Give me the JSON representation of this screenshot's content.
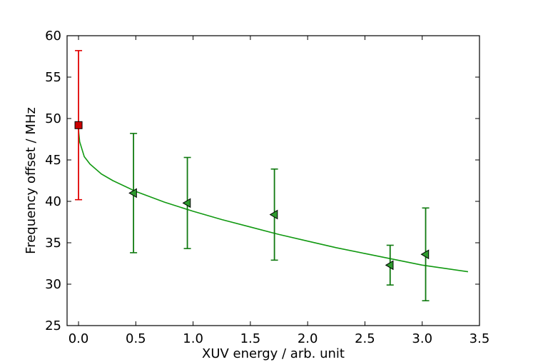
{
  "chart_data": {
    "type": "scatter",
    "title": "",
    "xlabel": "XUV energy / arb. unit",
    "ylabel": "Frequency offset / MHz",
    "xlim": [
      -0.1,
      3.5
    ],
    "ylim": [
      25,
      60
    ],
    "xticks": [
      0.0,
      0.5,
      1.0,
      1.5,
      2.0,
      2.5,
      3.0,
      3.5
    ],
    "xtick_labels": [
      "0.0",
      "0.5",
      "1.0",
      "1.5",
      "2.0",
      "2.5",
      "3.0",
      "3.5"
    ],
    "yticks": [
      25,
      30,
      35,
      40,
      45,
      50,
      55,
      60
    ],
    "ytick_labels": [
      "25",
      "30",
      "35",
      "40",
      "45",
      "50",
      "55",
      "60"
    ],
    "grid": false,
    "legend": "none",
    "series": [
      {
        "marker": "square",
        "color": "#e00000",
        "marker_color": "#cc0000",
        "points": [
          {
            "x": 0.0,
            "y": 49.2,
            "err_low": 40.2,
            "err_high": 58.2
          }
        ]
      },
      {
        "marker": "triangle-left",
        "color": "#107a10",
        "marker_color": "#2e9a2e",
        "points": [
          {
            "x": 0.48,
            "y": 41.0,
            "err_low": 33.8,
            "err_high": 48.2
          },
          {
            "x": 0.95,
            "y": 39.8,
            "err_low": 34.3,
            "err_high": 45.3
          },
          {
            "x": 1.71,
            "y": 38.4,
            "err_low": 32.9,
            "err_high": 43.9
          },
          {
            "x": 2.72,
            "y": 32.3,
            "err_low": 29.9,
            "err_high": 34.7
          },
          {
            "x": 3.03,
            "y": 33.6,
            "err_low": 28.0,
            "err_high": 39.2
          }
        ]
      }
    ],
    "fit_curve": {
      "color": "#119911",
      "x": [
        0.0,
        0.002,
        0.01,
        0.05,
        0.1,
        0.2,
        0.3,
        0.5,
        0.75,
        1.0,
        1.25,
        1.5,
        1.75,
        2.0,
        2.25,
        2.5,
        2.75,
        3.0,
        3.2,
        3.4
      ],
      "y": [
        49.2,
        48.3,
        47.2,
        45.4,
        44.5,
        43.3,
        42.5,
        41.2,
        39.9,
        38.8,
        37.8,
        36.9,
        36.0,
        35.2,
        34.4,
        33.7,
        33.0,
        32.3,
        31.9,
        31.5
      ]
    }
  }
}
